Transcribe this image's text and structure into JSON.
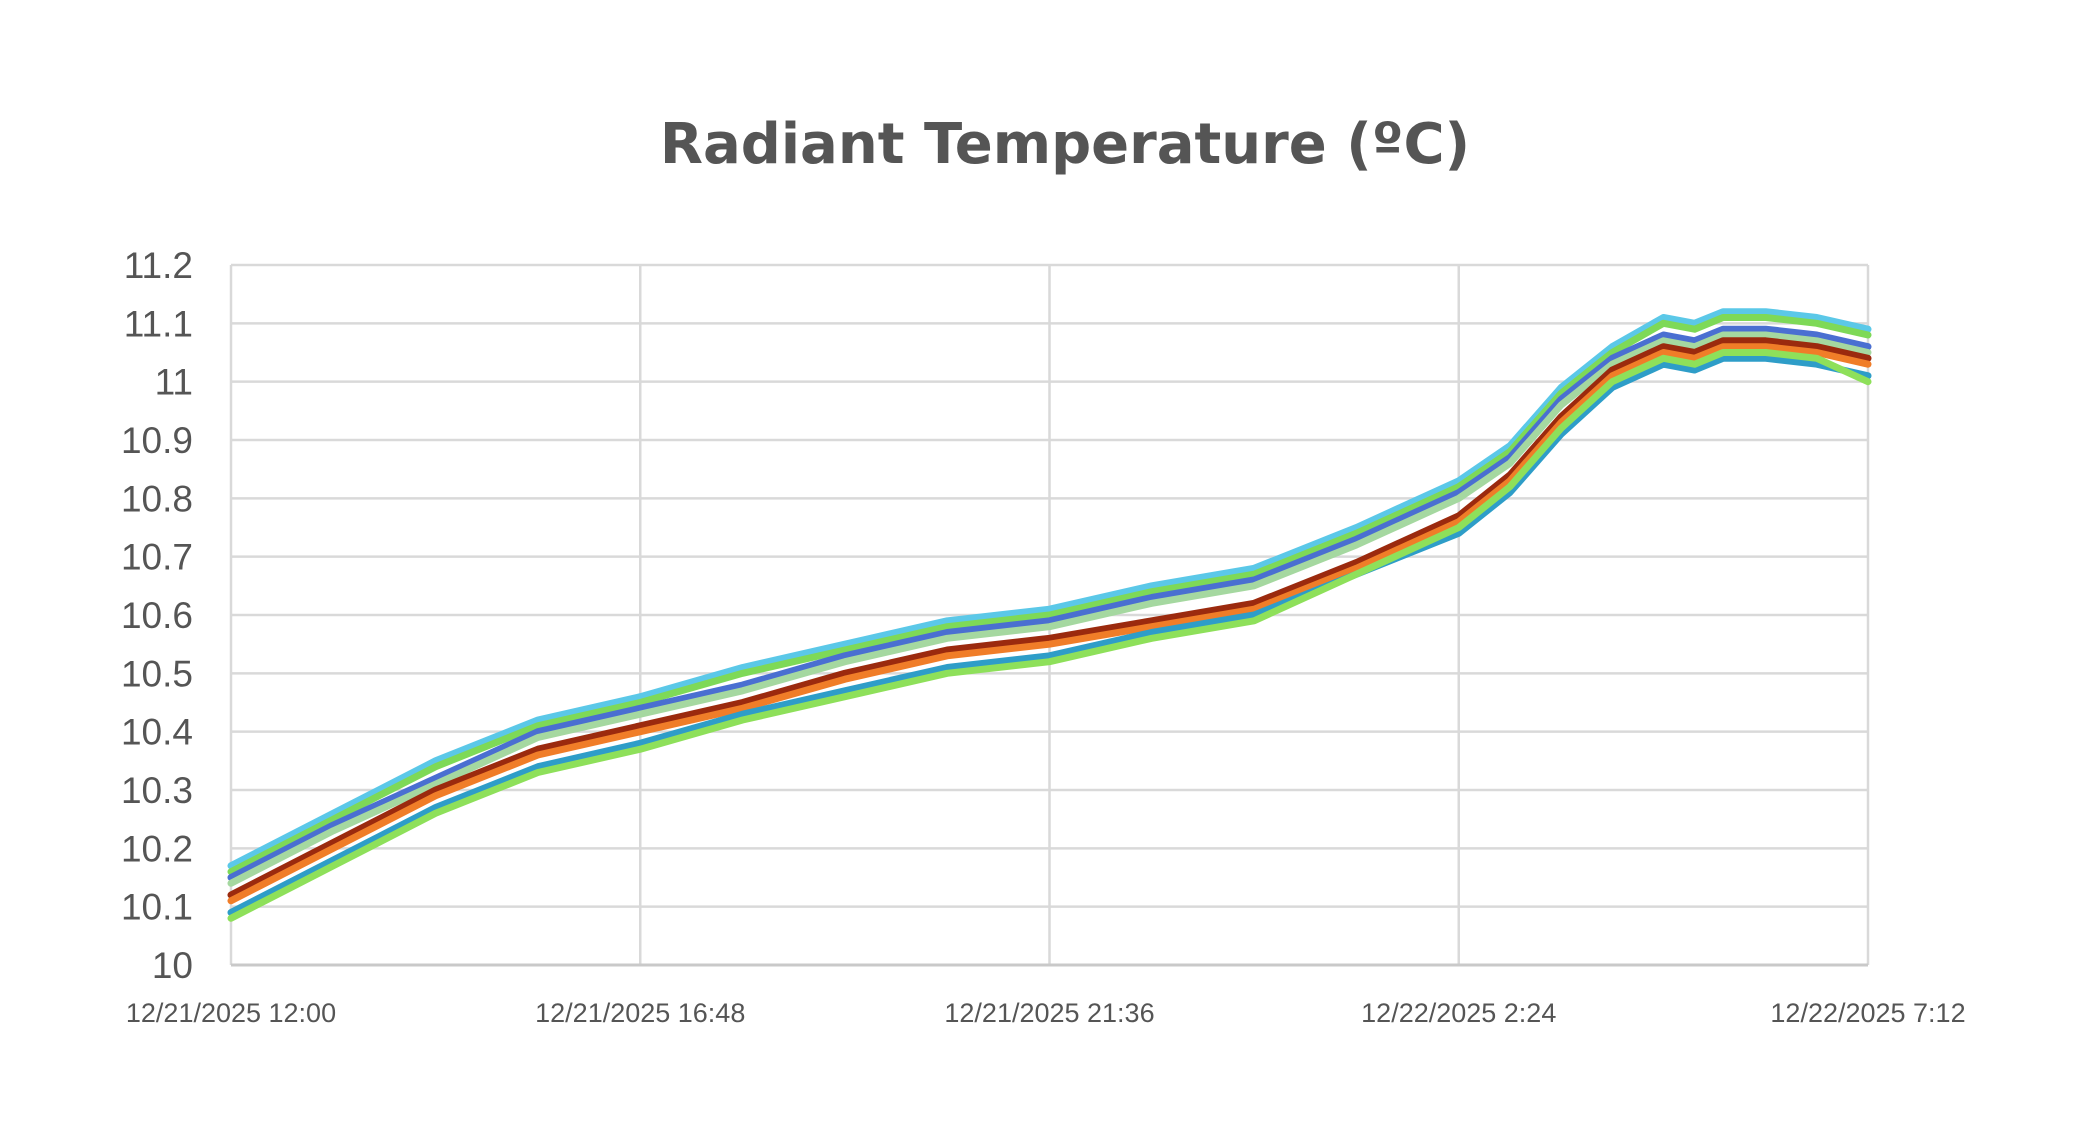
{
  "chart_data": {
    "type": "line",
    "title": "Radiant Temperature (ºC)",
    "xlabel": "",
    "ylabel": "",
    "ylim": [
      10,
      11.2
    ],
    "yticks": [
      "10",
      "10.1",
      "10.2",
      "10.3",
      "10.4",
      "10.5",
      "10.6",
      "10.7",
      "10.8",
      "10.9",
      "11",
      "11.1",
      "11.2"
    ],
    "xlim": [
      "12/21/2025 12:00",
      "12/22/2025 7:12"
    ],
    "xticks": [
      "12/21/2025 12:00",
      "12/21/2025 16:48",
      "12/21/2025 21:36",
      "12/22/2025 2:24",
      "12/22/2025 7:12"
    ],
    "grid": true,
    "legend": "none",
    "x": [
      "12/21/2025 12:00",
      "12/21/2025 13:12",
      "12/21/2025 14:24",
      "12/21/2025 15:36",
      "12/21/2025 16:48",
      "12/21/2025 18:00",
      "12/21/2025 19:12",
      "12/21/2025 20:24",
      "12/21/2025 21:36",
      "12/21/2025 22:48",
      "12/22/2025 0:00",
      "12/22/2025 1:12",
      "12/22/2025 2:24",
      "12/22/2025 3:00",
      "12/22/2025 3:36",
      "12/22/2025 4:12",
      "12/22/2025 4:48",
      "12/22/2025 5:10",
      "12/22/2025 5:30",
      "12/22/2025 6:00",
      "12/22/2025 6:36",
      "12/22/2025 7:12"
    ],
    "series": [
      {
        "color": "#5bc8e8",
        "values": [
          10.17,
          10.26,
          10.35,
          10.42,
          10.46,
          10.51,
          10.55,
          10.59,
          10.61,
          10.65,
          10.68,
          10.75,
          10.83,
          10.89,
          10.99,
          11.06,
          11.11,
          11.1,
          11.12,
          11.12,
          11.11,
          11.09
        ]
      },
      {
        "color": "#7ed957",
        "values": [
          10.16,
          10.25,
          10.34,
          10.41,
          10.45,
          10.5,
          10.54,
          10.58,
          10.6,
          10.64,
          10.67,
          10.74,
          10.82,
          10.88,
          10.98,
          11.05,
          11.1,
          11.09,
          11.11,
          11.11,
          11.1,
          11.08
        ]
      },
      {
        "color": "#4a6fd1",
        "values": [
          10.15,
          10.24,
          10.32,
          10.4,
          10.44,
          10.48,
          10.53,
          10.57,
          10.59,
          10.63,
          10.66,
          10.73,
          10.81,
          10.87,
          10.97,
          11.04,
          11.08,
          11.07,
          11.09,
          11.09,
          11.08,
          11.06
        ]
      },
      {
        "color": "#a5d8a0",
        "values": [
          10.14,
          10.23,
          10.31,
          10.39,
          10.43,
          10.47,
          10.52,
          10.56,
          10.58,
          10.62,
          10.65,
          10.72,
          10.8,
          10.86,
          10.96,
          11.03,
          11.07,
          11.06,
          11.08,
          11.08,
          11.07,
          11.05
        ]
      },
      {
        "color": "#9b2a0e",
        "values": [
          10.12,
          10.21,
          10.3,
          10.37,
          10.41,
          10.45,
          10.5,
          10.54,
          10.56,
          10.59,
          10.62,
          10.69,
          10.77,
          10.84,
          10.94,
          11.02,
          11.06,
          11.05,
          11.07,
          11.07,
          11.06,
          11.04
        ]
      },
      {
        "color": "#f07d28",
        "values": [
          10.11,
          10.2,
          10.29,
          10.36,
          10.4,
          10.44,
          10.49,
          10.53,
          10.55,
          10.58,
          10.61,
          10.68,
          10.76,
          10.83,
          10.93,
          11.01,
          11.05,
          11.04,
          11.06,
          11.06,
          11.05,
          11.03
        ]
      },
      {
        "color": "#2e9dc8",
        "values": [
          10.09,
          10.18,
          10.27,
          10.34,
          10.38,
          10.43,
          10.47,
          10.51,
          10.53,
          10.57,
          10.6,
          10.67,
          10.74,
          10.81,
          10.91,
          10.99,
          11.03,
          11.02,
          11.04,
          11.04,
          11.03,
          11.01
        ]
      },
      {
        "color": "#8ee05a",
        "values": [
          10.08,
          10.17,
          10.26,
          10.33,
          10.37,
          10.42,
          10.46,
          10.5,
          10.52,
          10.56,
          10.59,
          10.67,
          10.75,
          10.82,
          10.92,
          11.0,
          11.04,
          11.03,
          11.05,
          11.05,
          11.04,
          11.0
        ]
      }
    ]
  }
}
